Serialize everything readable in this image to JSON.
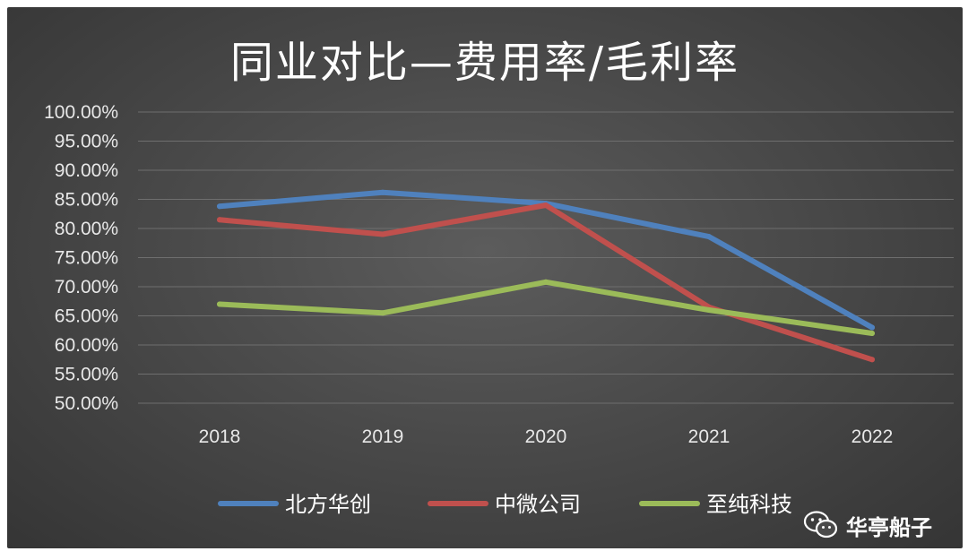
{
  "chart_data": {
    "type": "line",
    "title": "同业对比—费用率/毛利率",
    "categories": [
      "2018",
      "2019",
      "2020",
      "2021",
      "2022"
    ],
    "y_ticks": [
      "100.00%",
      "95.00%",
      "90.00%",
      "85.00%",
      "80.00%",
      "75.00%",
      "70.00%",
      "65.00%",
      "60.00%",
      "55.00%",
      "50.00%"
    ],
    "ylim": [
      50,
      100
    ],
    "grid": true,
    "legend_position": "bottom",
    "series": [
      {
        "name": "北方华创",
        "color": "#4f81bd",
        "values": [
          83.8,
          86.2,
          84.3,
          78.6,
          63.0
        ]
      },
      {
        "name": "中微公司",
        "color": "#c0504d",
        "values": [
          81.5,
          79.0,
          84.0,
          66.5,
          57.5
        ]
      },
      {
        "name": "至纯科技",
        "color": "#9bbb59",
        "values": [
          67.0,
          65.5,
          70.8,
          66.0,
          62.0
        ]
      }
    ]
  },
  "watermark": {
    "icon": "wechat-icon",
    "text": "华亭船子"
  }
}
